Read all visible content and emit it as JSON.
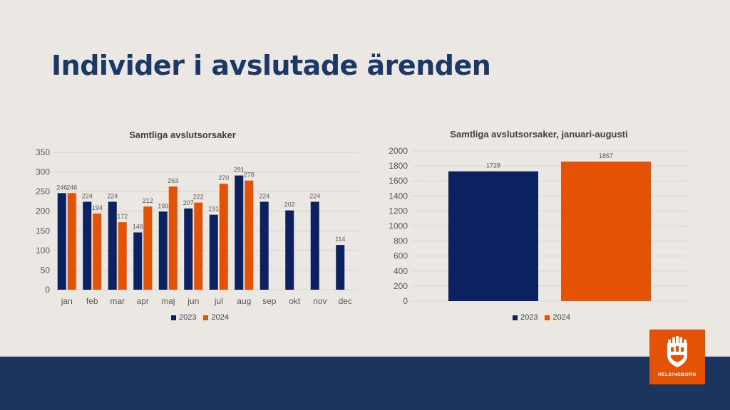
{
  "slide": {
    "title": "Individer i avslutade ärenden"
  },
  "colors": {
    "series_2023": "#0b2160",
    "series_2024": "#e35205",
    "grid": "#d9d5d0",
    "footer": "#1c355e"
  },
  "logo": {
    "text": "HELSINGBORG",
    "icon": "helsingborg-castle-crest"
  },
  "chart_data": [
    {
      "type": "bar",
      "title": "Samtliga avslutsorsaker",
      "categories": [
        "jan",
        "feb",
        "mar",
        "apr",
        "maj",
        "jun",
        "jul",
        "aug",
        "sep",
        "okt",
        "nov",
        "dec"
      ],
      "series": [
        {
          "name": "2023",
          "values": [
            246,
            224,
            224,
            146,
            199,
            207,
            191,
            291,
            224,
            202,
            224,
            114
          ]
        },
        {
          "name": "2024",
          "values": [
            246,
            194,
            172,
            212,
            263,
            222,
            270,
            278,
            null,
            null,
            null,
            null
          ]
        }
      ],
      "ylim": [
        0,
        350
      ],
      "yticks": [
        0,
        50,
        100,
        150,
        200,
        250,
        300,
        350
      ],
      "grid": true,
      "legend": "bottom"
    },
    {
      "type": "bar",
      "title": "Samtliga avslutsorsaker, januari-augusti",
      "categories": [
        ""
      ],
      "series": [
        {
          "name": "2023",
          "values": [
            1728
          ]
        },
        {
          "name": "2024",
          "values": [
            1857
          ]
        }
      ],
      "ylim": [
        0,
        2000
      ],
      "yticks": [
        0,
        200,
        400,
        600,
        800,
        1000,
        1200,
        1400,
        1600,
        1800,
        2000
      ],
      "grid": true,
      "legend": "bottom"
    }
  ]
}
